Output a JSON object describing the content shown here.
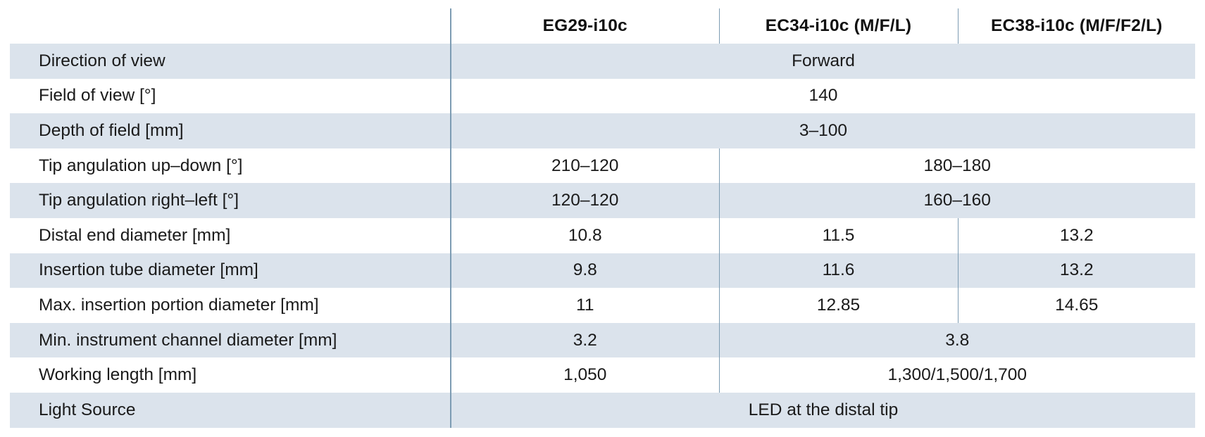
{
  "table": {
    "headers": [
      "",
      "EG29-i10c",
      "EC34-i10c (M/F/L)",
      "EC38-i10c (M/F/F2/L)"
    ],
    "rows": [
      {
        "label": "Direction of view",
        "values": [
          "Forward"
        ]
      },
      {
        "label": "Field of view [°]",
        "values": [
          "140"
        ]
      },
      {
        "label": "Depth of field [mm]",
        "values": [
          "3–100"
        ]
      },
      {
        "label": "Tip angulation up–down [°]",
        "values": [
          "210–120",
          "180–180"
        ]
      },
      {
        "label": "Tip angulation right–left [°]",
        "values": [
          "120–120",
          "160–160"
        ]
      },
      {
        "label": "Distal end diameter [mm]",
        "values": [
          "10.8",
          "11.5",
          "13.2"
        ]
      },
      {
        "label": "Insertion tube diameter [mm]",
        "values": [
          "9.8",
          "11.6",
          "13.2"
        ]
      },
      {
        "label": "Max. insertion portion diameter  [mm]",
        "values": [
          "11",
          "12.85",
          "14.65"
        ]
      },
      {
        "label": "Min. instrument channel diameter [mm]",
        "values": [
          "3.2",
          "3.8"
        ]
      },
      {
        "label": "Working length [mm]",
        "values": [
          "1,050",
          "1,300/1,500/1,700"
        ]
      },
      {
        "label": "Light Source",
        "values": [
          "LED at the distal tip"
        ]
      }
    ]
  },
  "colors": {
    "row_shade": "#dbe3ec",
    "divider": "#7d9cb3"
  }
}
